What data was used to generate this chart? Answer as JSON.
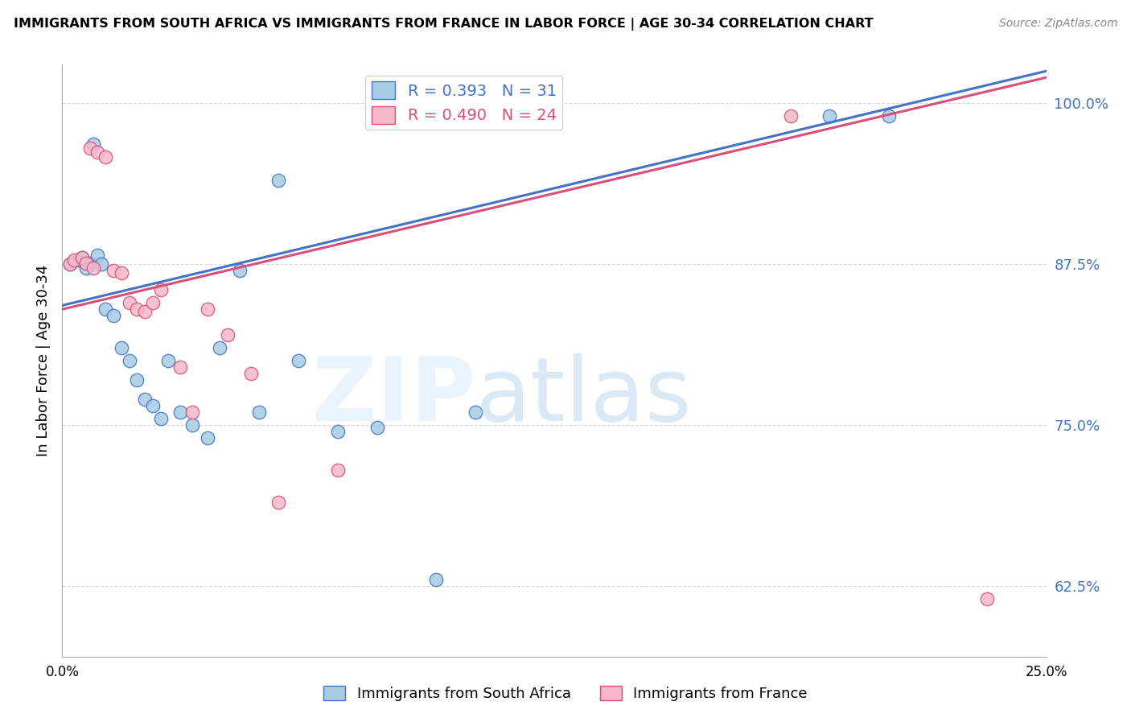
{
  "title": "IMMIGRANTS FROM SOUTH AFRICA VS IMMIGRANTS FROM FRANCE IN LABOR FORCE | AGE 30-34 CORRELATION CHART",
  "source": "Source: ZipAtlas.com",
  "ylabel": "In Labor Force | Age 30-34",
  "xlim": [
    0.0,
    0.25
  ],
  "ylim": [
    0.57,
    1.03
  ],
  "yticks": [
    0.625,
    0.75,
    0.875,
    1.0
  ],
  "ytick_labels": [
    "62.5%",
    "75.0%",
    "87.5%",
    "100.0%"
  ],
  "xticks": [
    0.0,
    0.05,
    0.1,
    0.15,
    0.2,
    0.25
  ],
  "xtick_labels": [
    "0.0%",
    "",
    "",
    "",
    "",
    "25.0%"
  ],
  "blue_color": "#a8cce4",
  "pink_color": "#f4b8cb",
  "line_blue": "#4472c4",
  "line_pink": "#d94f7a",
  "R_blue": 0.393,
  "N_blue": 31,
  "R_pink": 0.49,
  "N_pink": 24,
  "legend_label_blue": "Immigrants from South Africa",
  "legend_label_pink": "Immigrants from France",
  "blue_x": [
    0.002,
    0.004,
    0.005,
    0.006,
    0.007,
    0.008,
    0.009,
    0.01,
    0.011,
    0.013,
    0.015,
    0.017,
    0.019,
    0.021,
    0.023,
    0.025,
    0.027,
    0.03,
    0.033,
    0.037,
    0.04,
    0.045,
    0.05,
    0.055,
    0.06,
    0.07,
    0.08,
    0.095,
    0.105,
    0.195,
    0.21
  ],
  "blue_y": [
    0.875,
    0.878,
    0.88,
    0.872,
    0.876,
    0.968,
    0.882,
    0.875,
    0.84,
    0.835,
    0.81,
    0.8,
    0.785,
    0.77,
    0.765,
    0.755,
    0.8,
    0.76,
    0.75,
    0.74,
    0.81,
    0.87,
    0.76,
    0.94,
    0.8,
    0.745,
    0.748,
    0.63,
    0.76,
    0.99,
    0.99
  ],
  "pink_x": [
    0.002,
    0.003,
    0.005,
    0.006,
    0.007,
    0.008,
    0.009,
    0.011,
    0.013,
    0.015,
    0.017,
    0.019,
    0.021,
    0.023,
    0.025,
    0.03,
    0.033,
    0.037,
    0.042,
    0.048,
    0.055,
    0.07,
    0.185,
    0.235
  ],
  "pink_y": [
    0.875,
    0.878,
    0.88,
    0.876,
    0.965,
    0.872,
    0.962,
    0.958,
    0.87,
    0.868,
    0.845,
    0.84,
    0.838,
    0.845,
    0.855,
    0.795,
    0.76,
    0.84,
    0.82,
    0.79,
    0.69,
    0.715,
    0.99,
    0.615
  ],
  "background_color": "#ffffff",
  "grid_color": "#d8d8d8",
  "line_intercept_blue": 0.843,
  "line_slope_blue": 0.73,
  "line_intercept_pink": 0.838,
  "line_slope_pink": 0.73
}
